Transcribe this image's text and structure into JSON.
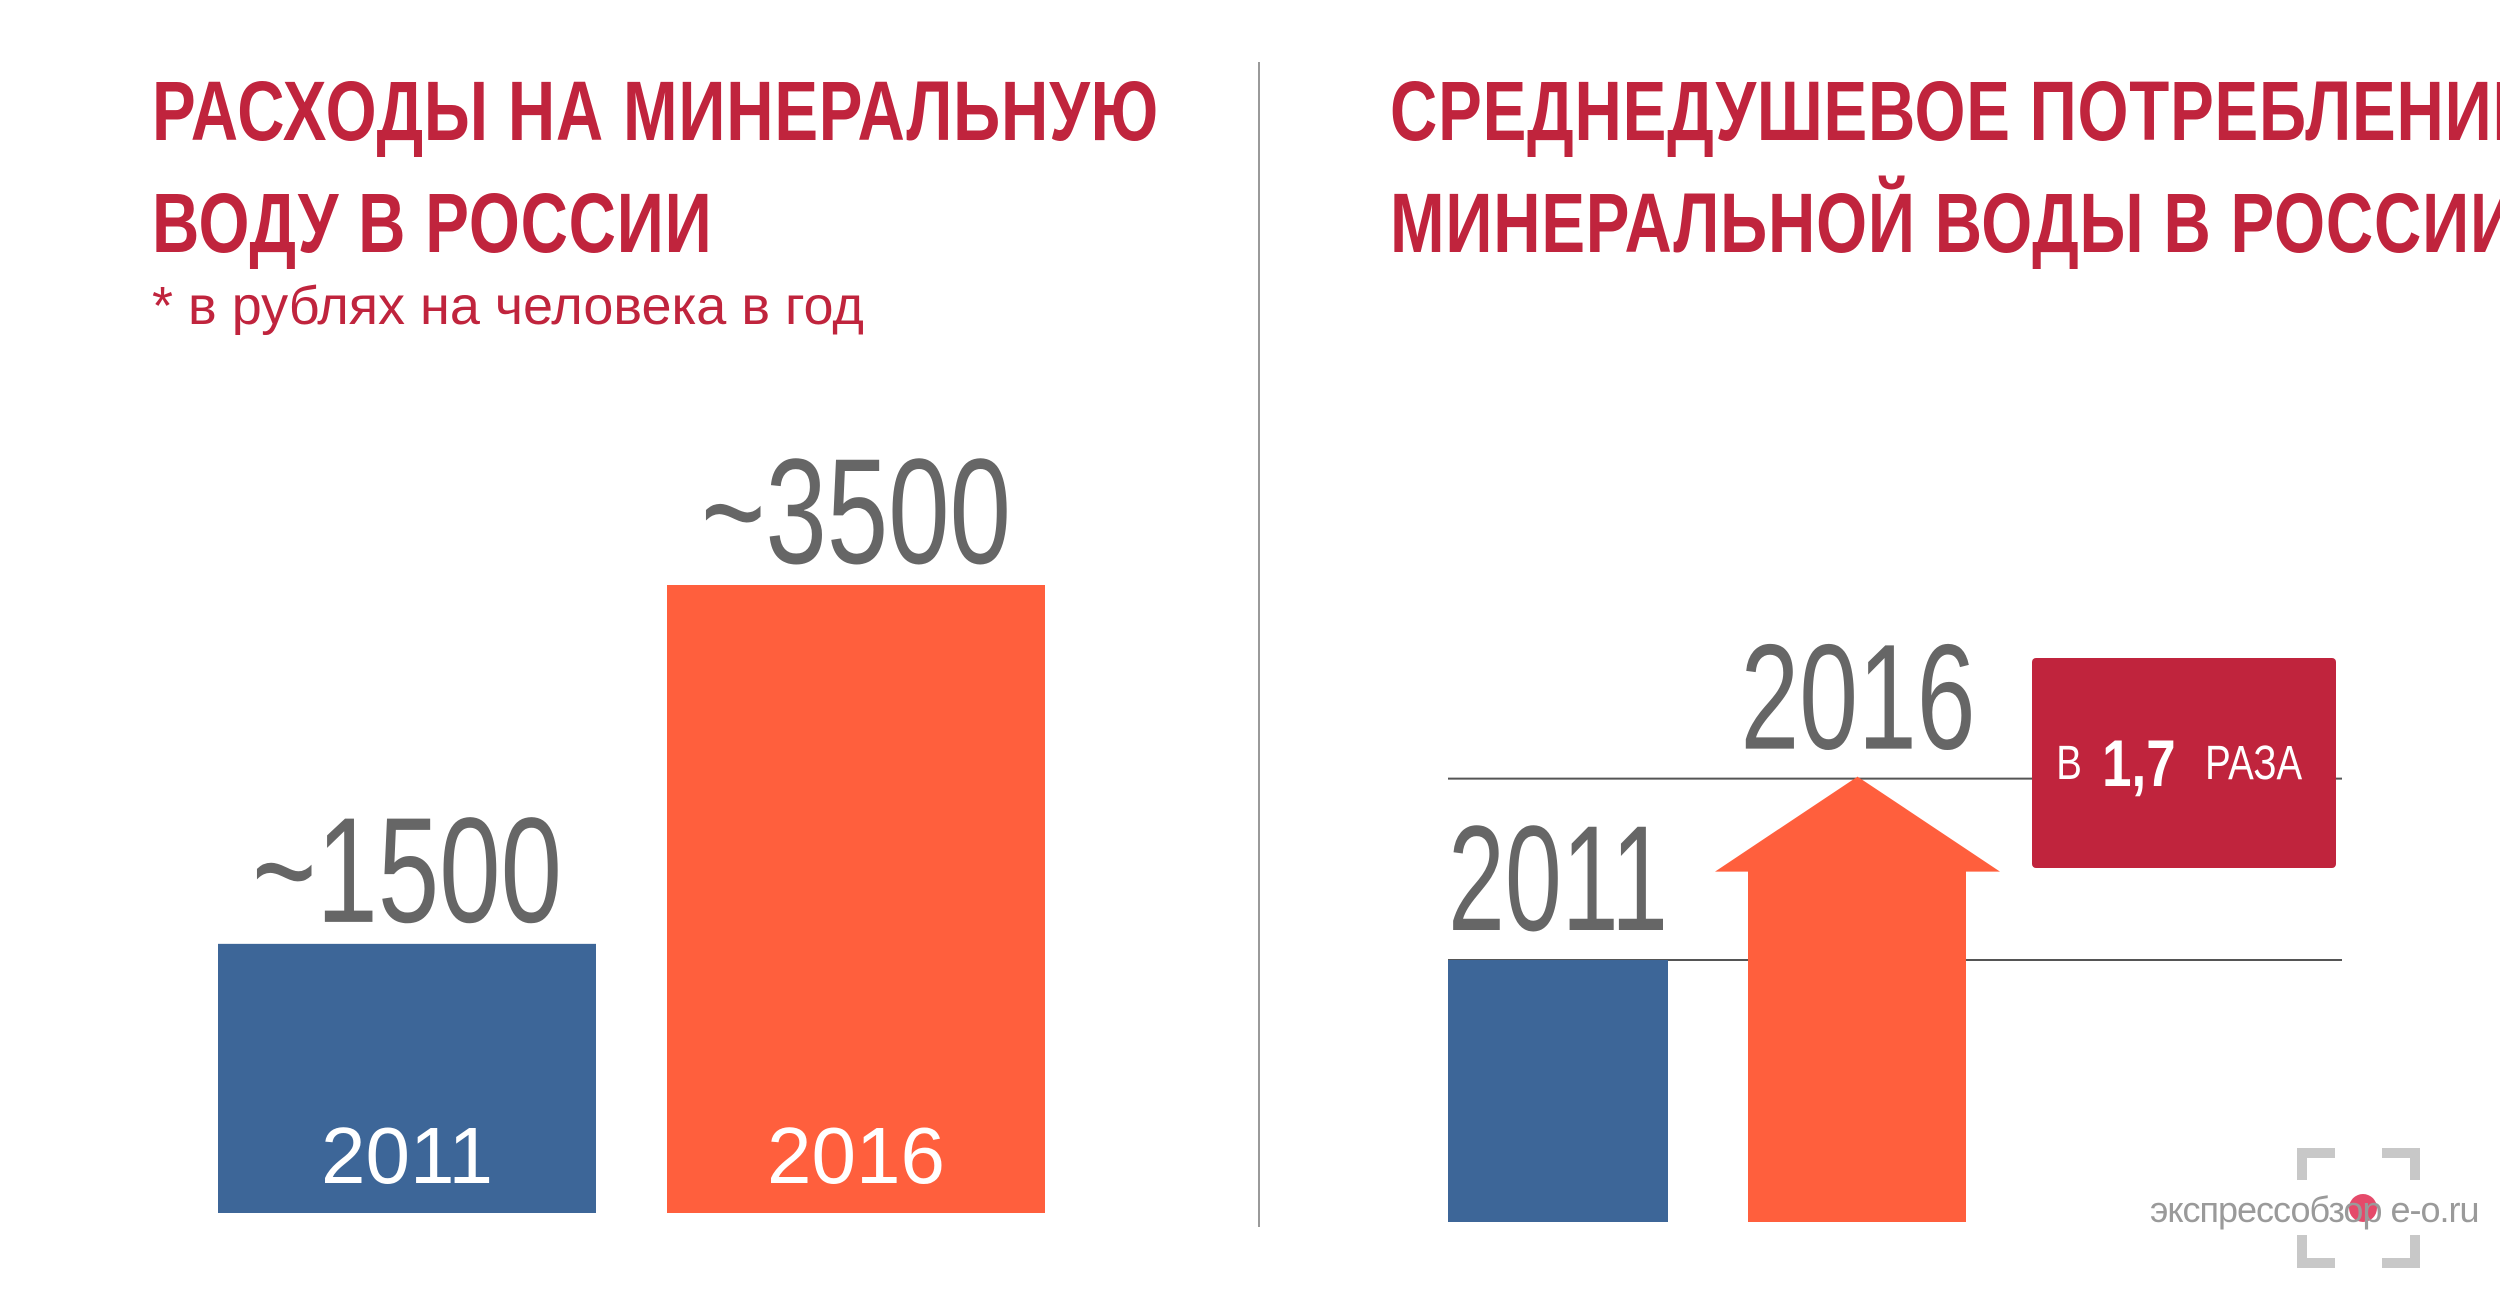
{
  "left_panel": {
    "title_line1": "РАСХОДЫ НА МИНЕРАЛЬНУЮ",
    "title_line2": "ВОДУ В РОССИИ",
    "subtitle": "* в рублях на человека в год"
  },
  "right_panel": {
    "title_line1": "СРЕДНЕДУШЕВОЕ ПОТРЕБЛЕНИЕ",
    "title_line2": "МИНЕРАЛЬНОЙ ВОДЫ В РОССИИ",
    "ratio_prefix": "В",
    "ratio_value": "1,7",
    "ratio_suffix": "РАЗА"
  },
  "watermark": {
    "text": "экспрессобзор e-o.ru"
  },
  "colors": {
    "title": "#c0243d",
    "bar_2011": "#3d6698",
    "bar_2016": "#ff5f3d",
    "value_text": "#666666",
    "badge": "#c0243d"
  },
  "chart_data": [
    {
      "type": "bar",
      "categories": [
        "2011",
        "2016"
      ],
      "values": [
        1500,
        3500
      ],
      "value_labels": [
        "~1500",
        "~3500"
      ],
      "title": "РАСХОДЫ НА МИНЕРАЛЬНУЮ ВОДУ В РОССИИ",
      "subtitle": "* в рублях на человека в год",
      "ylim": [
        0,
        3500
      ],
      "grid": false
    },
    {
      "type": "bar",
      "categories": [
        "2011",
        "2016"
      ],
      "values": [
        1,
        1.7
      ],
      "annotation": "В 1,7 РАЗА",
      "title": "СРЕДНЕДУШЕВОЕ ПОТРЕБЛЕНИЕ МИНЕРАЛЬНОЙ ВОДЫ В РОССИИ",
      "grid": false
    }
  ]
}
